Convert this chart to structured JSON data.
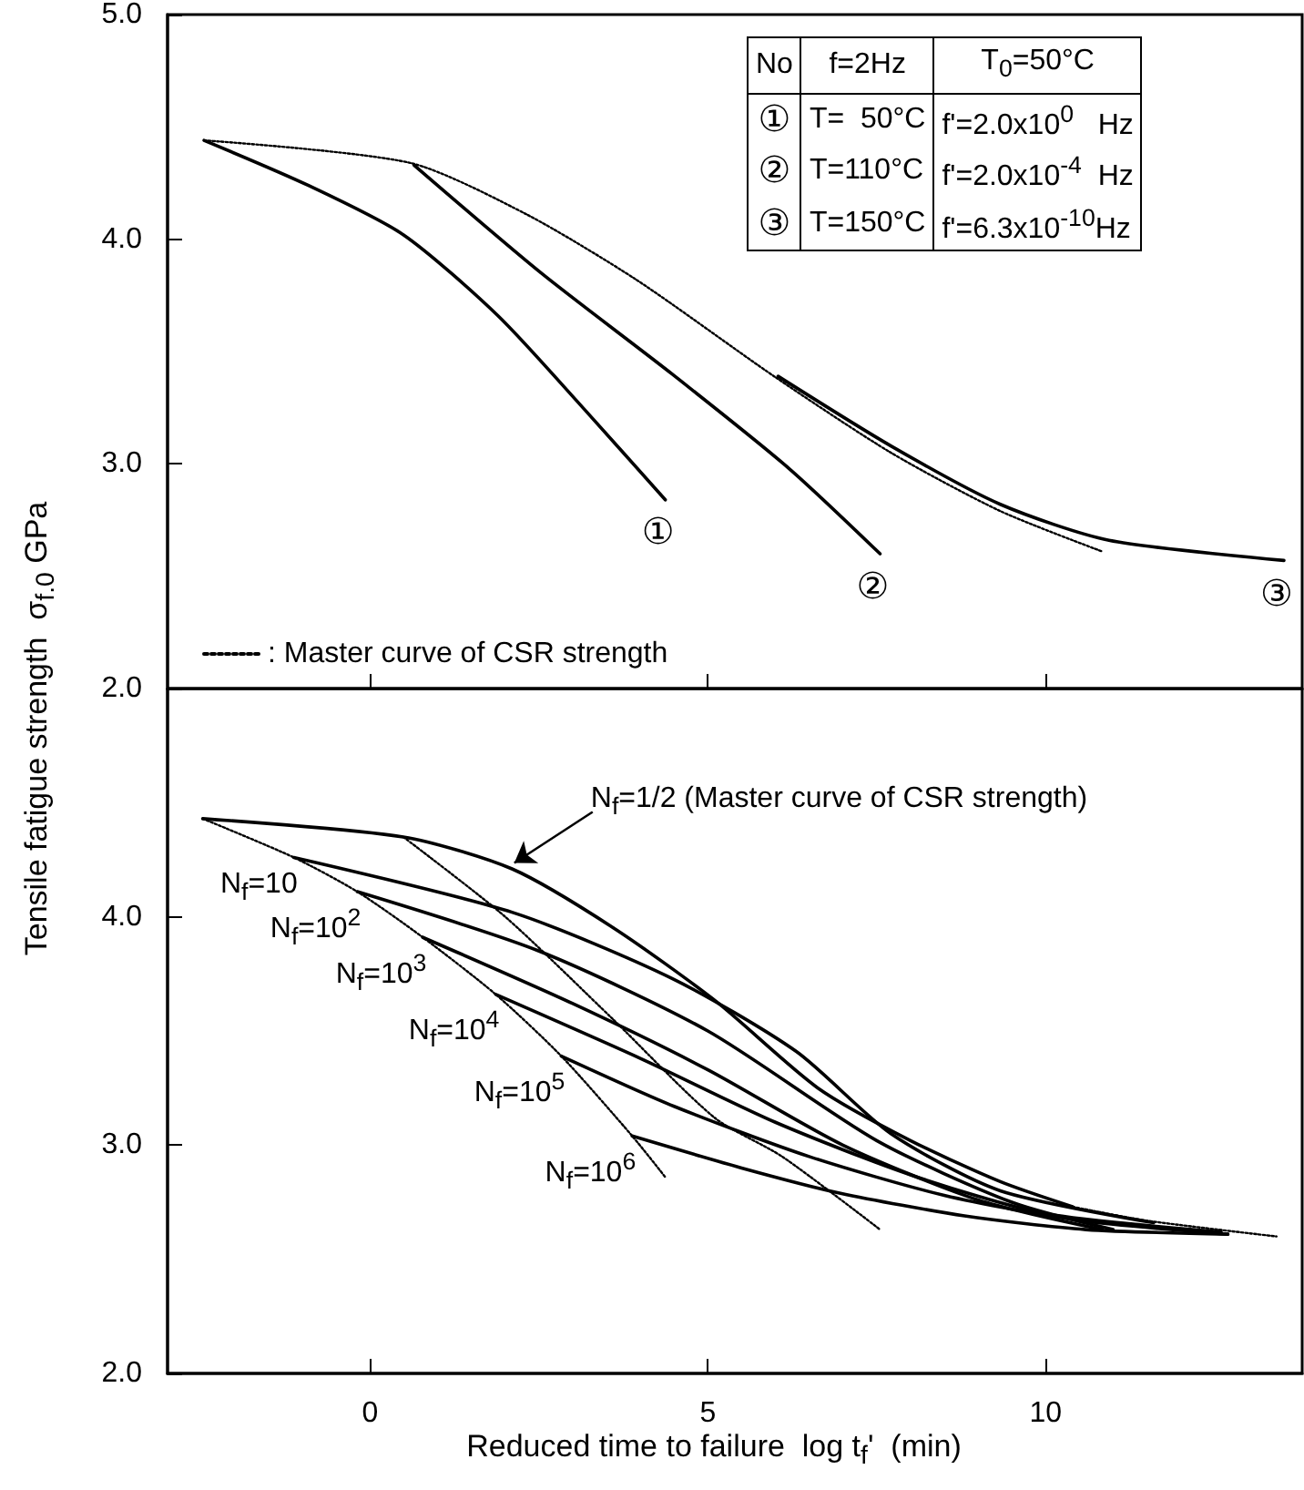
{
  "chart_data": [
    {
      "type": "line",
      "ylabel": "Tensile fatigue strength  σ$_{f.0}$ GPa",
      "xlim": [
        -3,
        13.8
      ],
      "ylim": [
        2,
        5
      ],
      "xticks": [
        0,
        5,
        10
      ],
      "yticks": [
        {
          "value": 2,
          "label": "2.0"
        },
        {
          "value": 3,
          "label": "3.0"
        },
        {
          "value": 4,
          "label": "4.0"
        },
        {
          "value": 5,
          "label": "5.0"
        }
      ],
      "tick_labels": "y",
      "marker": "none",
      "line_style": "solid",
      "legend": "bottom left",
      "annotations": [
        "No",
        "f=2Hz",
        "T$_{0}$=50°C",
        "①",
        "T=  50°C",
        "f'=2.0x10$^{0}$   Hz",
        "②",
        "T=110°C",
        "f'=2.0x10$^{-4}$  Hz",
        "③",
        "T=150°C",
        "f'=6.3x10$^{-10}$Hz"
      ],
      "series": [
        {
          "name": ": Master curve of CSR strength",
          "color": "#000000",
          "line_style": "dotted",
          "x": [
            -2.46,
            0.59,
            2.32,
            3.94,
            5.98,
            7.71,
            9.33,
            10.84
          ],
          "values": [
            4.44,
            4.34,
            4.11,
            3.82,
            3.39,
            3.05,
            2.79,
            2.61
          ]
        },
        {
          "name": "①",
          "color": "#000000",
          "x": [
            -2.46,
            -0.92,
            0.49,
            1.89,
            3.18,
            4.37
          ],
          "values": [
            4.44,
            4.24,
            4.02,
            3.66,
            3.24,
            2.84
          ]
        },
        {
          "name": "②",
          "color": "#000000",
          "x": [
            0.65,
            2.53,
            4.47,
            6.2,
            7.55
          ],
          "values": [
            4.33,
            3.85,
            3.4,
            2.98,
            2.6
          ]
        },
        {
          "name": "③",
          "color": "#000000",
          "x": [
            6.04,
            7.71,
            9.33,
            10.94,
            13.53
          ],
          "values": [
            3.39,
            3.08,
            2.82,
            2.66,
            2.57
          ]
        }
      ]
    },
    {
      "type": "line",
      "xlabel": "Reduced time to failure  log t$_{f}$'  (min)",
      "xlim": [
        -3,
        13.8
      ],
      "ylim": [
        2,
        5
      ],
      "xticks": [
        0,
        5,
        10
      ],
      "yticks": [
        {
          "value": 2,
          "label": "2.0"
        },
        {
          "value": 3,
          "label": "3.0"
        },
        {
          "value": 4,
          "label": "4.0"
        }
      ],
      "marker": "none",
      "line_style": "solid",
      "annotations": [
        {
          "text": "N$_{f}$=1/2 (Master curve of CSR strength)",
          "x": 2.08,
          "y": 4.22
        }
      ],
      "series": [
        {
          "color": "#000000",
          "x": [
            -2.48,
            0.49,
            2.1,
            3.61,
            5.12,
            6.63,
            8.0,
            9.33,
            10.4
          ],
          "values": [
            4.43,
            4.35,
            4.21,
            3.95,
            3.63,
            3.25,
            3.02,
            2.84,
            2.73
          ]
        },
        {
          "color": "#000000",
          "line_style": "dotted",
          "x": [
            10.4,
            11.48,
            13.42
          ],
          "values": [
            2.73,
            2.67,
            2.6
          ]
        },
        {
          "color": "#000000",
          "line_style": "dotted",
          "x": [
            -2.48,
            -1.13,
            -0.19,
            0.78,
            1.86,
            2.83,
            3.88,
            4.37
          ],
          "values": [
            4.43,
            4.26,
            4.11,
            3.91,
            3.66,
            3.39,
            3.04,
            2.86
          ]
        },
        {
          "color": "#000000",
          "line_style": "dotted",
          "x": [
            0.49,
            2.0,
            3.6,
            5.1,
            6.1,
            7.55
          ],
          "values": [
            4.35,
            4.0,
            3.55,
            3.12,
            2.95,
            2.63
          ]
        },
        {
          "name": "N$_{f}$=10",
          "color": "#000000",
          "x": [
            -1.13,
            2.1,
            4.47,
            6.31,
            7.71,
            9.33,
            11.6
          ],
          "values": [
            4.26,
            4.02,
            3.73,
            3.41,
            3.05,
            2.8,
            2.66
          ]
        },
        {
          "name": "N$_{f}$=10$^{2}$",
          "color": "#000000",
          "x": [
            -0.19,
            2.5,
            5.0,
            7.5,
            9.5,
            11.0
          ],
          "values": [
            4.11,
            3.85,
            3.5,
            3.02,
            2.75,
            2.63
          ]
        },
        {
          "name": "N$_{f}$=10$^{3}$",
          "color": "#000000",
          "x": [
            0.78,
            3.0,
            5.0,
            7.0,
            9.0,
            10.84
          ],
          "values": [
            3.91,
            3.62,
            3.33,
            3.0,
            2.76,
            2.63
          ]
        },
        {
          "name": "N$_{f}$=10$^{4}$",
          "color": "#000000",
          "x": [
            1.86,
            4.0,
            6.0,
            8.0,
            10.0,
            12.6
          ],
          "values": [
            3.66,
            3.38,
            3.1,
            2.87,
            2.7,
            2.62
          ]
        },
        {
          "name": "N$_{f}$=10$^{5}$",
          "color": "#000000",
          "x": [
            2.83,
            4.5,
            6.5,
            8.5,
            10.5,
            12.7
          ],
          "values": [
            3.39,
            3.17,
            2.95,
            2.78,
            2.67,
            2.61
          ]
        },
        {
          "name": "N$_{f}$=10$^{6}$",
          "color": "#000000",
          "x": [
            3.88,
            5.5,
            6.95,
            8.8,
            10.6,
            12.7
          ],
          "values": [
            3.04,
            2.9,
            2.79,
            2.69,
            2.63,
            2.61
          ]
        }
      ]
    }
  ]
}
